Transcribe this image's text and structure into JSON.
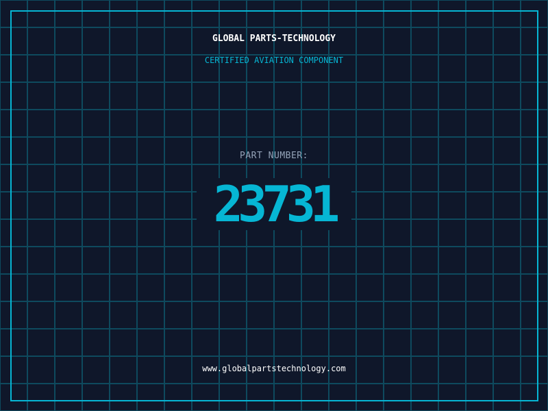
{
  "header": {
    "company": "GLOBAL PARTS-TECHNOLOGY",
    "subtitle": "CERTIFIED AVIATION COMPONENT"
  },
  "part": {
    "label": "PART NUMBER:",
    "number": "23731"
  },
  "footer": {
    "url": "www.globalpartstechnology.com"
  },
  "colors": {
    "background": "#0f172a",
    "accent": "#06b6d4",
    "grid": "#0e4a5e"
  }
}
